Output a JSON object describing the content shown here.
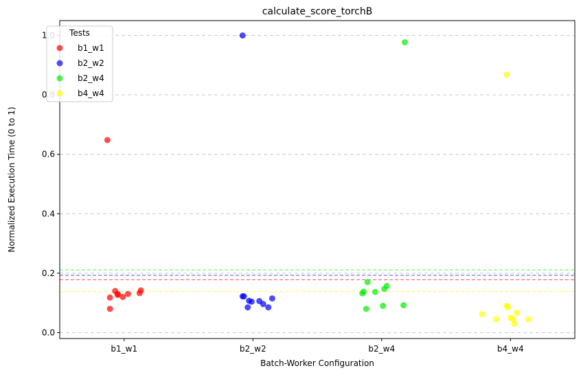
{
  "chart_data": {
    "type": "scatter",
    "title": "calculate_score_torchB",
    "xlabel": "Batch-Worker Configuration",
    "ylabel": "Normalized Execution Time (0 to 1)",
    "categories": [
      "b1_w1",
      "b2_w2",
      "b2_w4",
      "b4_w4"
    ],
    "ylim": [
      -0.02,
      1.05
    ],
    "yticks": [
      "0.0",
      "0.2",
      "0.4",
      "0.6",
      "0.8",
      "1.0"
    ],
    "ytick_values": [
      0.0,
      0.2,
      0.4,
      0.6,
      0.8,
      1.0
    ],
    "grid": "y-dashed",
    "legend": {
      "title": "Tests",
      "placement": "top-left"
    },
    "series": [
      {
        "name": "b1_w1",
        "color": "#ff0000",
        "mean_line": 0.178,
        "points": [
          {
            "x": -0.13,
            "y": 0.648
          },
          {
            "x": -0.11,
            "y": 0.118
          },
          {
            "x": -0.11,
            "y": 0.08
          },
          {
            "x": -0.07,
            "y": 0.14
          },
          {
            "x": -0.05,
            "y": 0.13
          },
          {
            "x": -0.05,
            "y": 0.127
          },
          {
            "x": -0.01,
            "y": 0.12
          },
          {
            "x": 0.03,
            "y": 0.13
          },
          {
            "x": 0.12,
            "y": 0.133
          },
          {
            "x": 0.13,
            "y": 0.142
          }
        ]
      },
      {
        "name": "b2_w2",
        "color": "#0000ff",
        "mean_line": 0.193,
        "points": [
          {
            "x": -0.08,
            "y": 1.0
          },
          {
            "x": -0.08,
            "y": 0.122
          },
          {
            "x": -0.07,
            "y": 0.122
          },
          {
            "x": -0.04,
            "y": 0.085
          },
          {
            "x": -0.03,
            "y": 0.107
          },
          {
            "x": -0.01,
            "y": 0.104
          },
          {
            "x": 0.05,
            "y": 0.106
          },
          {
            "x": 0.08,
            "y": 0.096
          },
          {
            "x": 0.12,
            "y": 0.085
          },
          {
            "x": 0.15,
            "y": 0.115
          }
        ]
      },
      {
        "name": "b2_w4",
        "color": "#00ee00",
        "mean_line": 0.211,
        "points": [
          {
            "x": 0.18,
            "y": 0.977
          },
          {
            "x": -0.15,
            "y": 0.132
          },
          {
            "x": -0.14,
            "y": 0.138
          },
          {
            "x": -0.12,
            "y": 0.08
          },
          {
            "x": -0.11,
            "y": 0.17
          },
          {
            "x": -0.05,
            "y": 0.137
          },
          {
            "x": 0.01,
            "y": 0.09
          },
          {
            "x": 0.02,
            "y": 0.147
          },
          {
            "x": 0.04,
            "y": 0.157
          },
          {
            "x": 0.17,
            "y": 0.092
          }
        ]
      },
      {
        "name": "b4_w4",
        "color": "#ffff00",
        "mean_line": 0.138,
        "points": [
          {
            "x": -0.03,
            "y": 0.868
          },
          {
            "x": -0.22,
            "y": 0.062
          },
          {
            "x": -0.11,
            "y": 0.045
          },
          {
            "x": -0.03,
            "y": 0.09
          },
          {
            "x": -0.02,
            "y": 0.086
          },
          {
            "x": 0.0,
            "y": 0.05
          },
          {
            "x": 0.02,
            "y": 0.046
          },
          {
            "x": 0.03,
            "y": 0.03
          },
          {
            "x": 0.05,
            "y": 0.067
          },
          {
            "x": 0.14,
            "y": 0.045
          }
        ]
      }
    ]
  }
}
